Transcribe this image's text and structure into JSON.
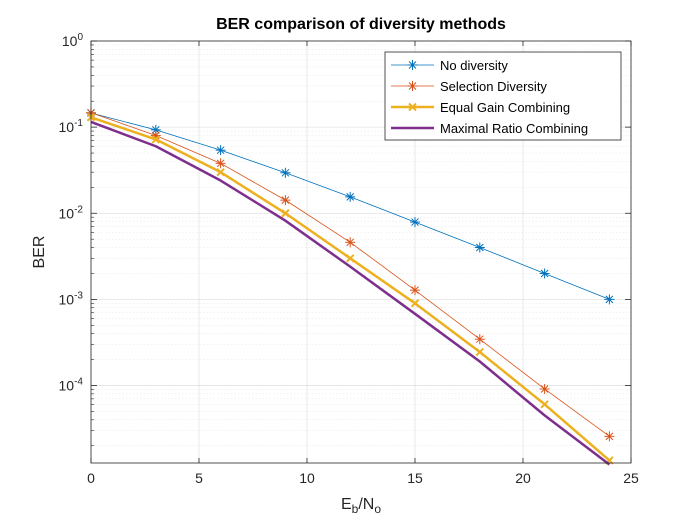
{
  "chart_data": {
    "type": "line",
    "title": "BER comparison of diversity methods",
    "xlabel_main": "E",
    "xlabel_sub1": "b",
    "xlabel_mid": "/N",
    "xlabel_sub2": "o",
    "ylabel": "BER",
    "xlim": [
      0,
      25
    ],
    "ylim": [
      1.26e-05,
      1
    ],
    "yscale": "log",
    "grid": true,
    "legend_position": "top-right",
    "x_ticks": [
      "0",
      "5",
      "10",
      "15",
      "20",
      "25"
    ],
    "y_ticks": [
      {
        "base": "10",
        "exp": "0"
      },
      {
        "base": "10",
        "exp": "-1"
      },
      {
        "base": "10",
        "exp": "-2"
      },
      {
        "base": "10",
        "exp": "-3"
      },
      {
        "base": "10",
        "exp": "-4"
      }
    ],
    "x": [
      0,
      3,
      6,
      9,
      12,
      15,
      18,
      21,
      24
    ],
    "series": [
      {
        "name": "No diversity",
        "color": "#0072BD",
        "marker": "asterisk",
        "values": [
          0.146,
          0.093,
          0.054,
          0.0295,
          0.0155,
          0.0079,
          0.004,
          0.002,
          0.001
        ]
      },
      {
        "name": "Selection Diversity",
        "color": "#D95319",
        "marker": "asterisk",
        "values": [
          0.147,
          0.08,
          0.038,
          0.0142,
          0.0046,
          0.00128,
          0.000345,
          9.12e-05,
          2.57e-05
        ]
      },
      {
        "name": "Equal Gain Combining",
        "color": "#EDB120",
        "marker": "x",
        "values": [
          0.13,
          0.072,
          0.03,
          0.01,
          0.003,
          0.0009,
          0.000245,
          6.05e-05,
          1.35e-05
        ]
      },
      {
        "name": "Maximal Ratio Combining",
        "color": "#7E2F8E",
        "marker": "none",
        "values": [
          0.115,
          0.06,
          0.024,
          0.0082,
          0.0024,
          0.00068,
          0.00019,
          4.5e-05,
          1.21e-05
        ]
      }
    ]
  }
}
